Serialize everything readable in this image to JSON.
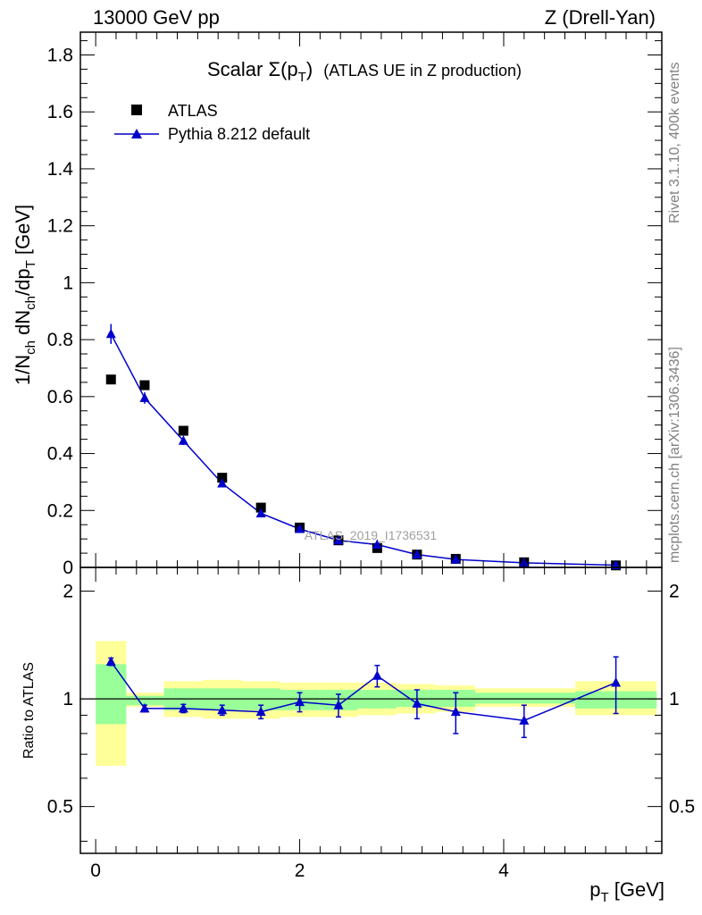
{
  "header": {
    "energy": "13000 GeV pp",
    "process": "Z (Drell-Yan)"
  },
  "side_labels": {
    "rivet": "Rivet 3.1.10,  400k events",
    "mcplots": "mcplots.cern.ch [arXiv:1306.3436]"
  },
  "watermark": "ATLAS_2019_I1736531",
  "colors": {
    "mc": "#0000cc",
    "data": "#000000",
    "band_inner": "#99ff99",
    "band_outer": "#ffff99"
  },
  "chart_data": [
    {
      "type": "scatter",
      "title": "Scalar Σ(p_T) (ATLAS UE in Z production)",
      "title_parts": {
        "main": "Scalar Σ(p",
        "sub": "T",
        "close": ")",
        "rest": "(ATLAS UE in Z production)"
      },
      "ylabel": "1/N_ch dN_ch/dp_T [GeV]",
      "ylabel_parts": {
        "p1": "1/N",
        "s1": "ch",
        "p2": " dN",
        "s2": "ch",
        "p3": "/dp",
        "s3": "T",
        "p4": " [GeV]"
      },
      "xlim": [
        -0.15,
        5.55
      ],
      "ylim": [
        0,
        1.88
      ],
      "yticks": [
        "0",
        "0.2",
        "0.4",
        "0.6",
        "0.8",
        "1",
        "1.2",
        "1.4",
        "1.6",
        "1.8"
      ],
      "legend": {
        "position": "top-left",
        "data": "ATLAS",
        "mc": "Pythia 8.212 default"
      },
      "series": [
        {
          "name": "ATLAS",
          "x": [
            0.15,
            0.48,
            0.86,
            1.24,
            1.62,
            2.0,
            2.38,
            2.76,
            3.15,
            3.53,
            4.2,
            5.1
          ],
          "y": [
            0.66,
            0.64,
            0.48,
            0.315,
            0.21,
            0.14,
            0.095,
            0.068,
            0.045,
            0.03,
            0.018,
            0.007
          ]
        },
        {
          "name": "Pythia 8.212 default",
          "x": [
            0.15,
            0.48,
            0.86,
            1.24,
            1.62,
            2.0,
            2.38,
            2.76,
            3.15,
            3.53,
            4.2,
            5.1
          ],
          "y": [
            0.82,
            0.595,
            0.445,
            0.295,
            0.19,
            0.135,
            0.095,
            0.08,
            0.045,
            0.028,
            0.016,
            0.008
          ],
          "yerr": [
            0.035,
            0.02,
            0.015,
            0.012,
            0.01,
            0.008,
            0.006,
            0.006,
            0.004,
            0.003,
            0.002,
            0.001
          ]
        }
      ]
    },
    {
      "type": "scatter",
      "ylabel": "Ratio to ATLAS",
      "xlabel": "p_T [GeV]",
      "xlabel_parts": {
        "main": "p",
        "sub": "T",
        "rest": " [GeV]"
      },
      "xlim": [
        -0.15,
        5.55
      ],
      "ylim": [
        0.37,
        2.33
      ],
      "xticks": [
        "0",
        "2",
        "4"
      ],
      "yticks": [
        "0.5",
        "1",
        "2"
      ],
      "bands": [
        {
          "x0": 0.0,
          "x1": 0.3,
          "inner": [
            0.85,
            1.25
          ],
          "outer": [
            0.65,
            1.45
          ]
        },
        {
          "x0": 0.3,
          "x1": 0.67,
          "inner": [
            0.96,
            1.02
          ],
          "outer": [
            0.95,
            1.04
          ]
        },
        {
          "x0": 0.67,
          "x1": 1.05,
          "inner": [
            0.93,
            1.07
          ],
          "outer": [
            0.89,
            1.12
          ]
        },
        {
          "x0": 1.05,
          "x1": 1.43,
          "inner": [
            0.93,
            1.07
          ],
          "outer": [
            0.88,
            1.13
          ]
        },
        {
          "x0": 1.43,
          "x1": 1.81,
          "inner": [
            0.93,
            1.07
          ],
          "outer": [
            0.88,
            1.12
          ]
        },
        {
          "x0": 1.81,
          "x1": 2.19,
          "inner": [
            0.93,
            1.06
          ],
          "outer": [
            0.89,
            1.11
          ]
        },
        {
          "x0": 2.19,
          "x1": 2.57,
          "inner": [
            0.93,
            1.06
          ],
          "outer": [
            0.89,
            1.11
          ]
        },
        {
          "x0": 2.57,
          "x1": 2.95,
          "inner": [
            0.94,
            1.06
          ],
          "outer": [
            0.9,
            1.11
          ]
        },
        {
          "x0": 2.95,
          "x1": 3.33,
          "inner": [
            0.95,
            1.06
          ],
          "outer": [
            0.91,
            1.1
          ]
        },
        {
          "x0": 3.33,
          "x1": 3.72,
          "inner": [
            0.95,
            1.06
          ],
          "outer": [
            0.92,
            1.09
          ]
        },
        {
          "x0": 3.72,
          "x1": 4.7,
          "inner": [
            0.97,
            1.04
          ],
          "outer": [
            0.95,
            1.07
          ]
        },
        {
          "x0": 4.7,
          "x1": 5.5,
          "inner": [
            0.94,
            1.05
          ],
          "outer": [
            0.9,
            1.12
          ]
        }
      ],
      "series": [
        {
          "name": "Pythia 8.212 default",
          "x": [
            0.15,
            0.48,
            0.86,
            1.24,
            1.62,
            2.0,
            2.38,
            2.76,
            3.15,
            3.53,
            4.2,
            5.1
          ],
          "y": [
            1.27,
            0.94,
            0.94,
            0.93,
            0.92,
            0.98,
            0.96,
            1.16,
            0.97,
            0.92,
            0.87,
            1.11
          ],
          "yerr": [
            0.03,
            0.02,
            0.025,
            0.03,
            0.04,
            0.06,
            0.07,
            0.08,
            0.09,
            0.12,
            0.09,
            0.2
          ]
        }
      ]
    }
  ]
}
